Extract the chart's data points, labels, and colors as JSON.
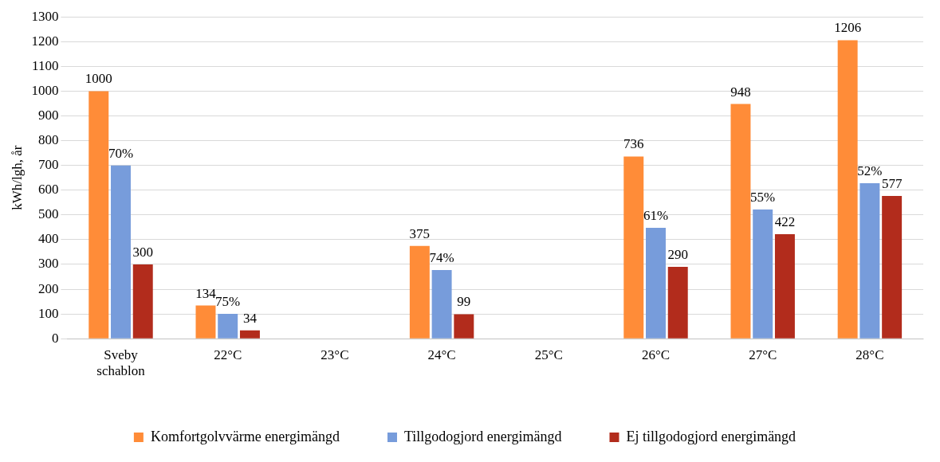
{
  "chart_data": {
    "type": "bar",
    "ylabel": "kWh/lgh, år",
    "categories": [
      "Sveby schablon",
      "22°C",
      "23°C",
      "24°C",
      "25°C",
      "26°C",
      "27°C",
      "28°C"
    ],
    "series": [
      {
        "name": "Komfortgolvvärme energimängd",
        "color": "#ff8c38",
        "values": [
          1000,
          134,
          null,
          375,
          null,
          736,
          948,
          1206
        ],
        "value_labels": [
          "1000",
          "134",
          null,
          "375",
          null,
          "736",
          "948",
          "1206"
        ]
      },
      {
        "name": "Tillgodogjord energimängd",
        "color": "#779cdb",
        "values": [
          700,
          100,
          null,
          277,
          null,
          448,
          522,
          628
        ]
      },
      {
        "name": "Ej tillgodogjord energimängd",
        "color": "#b22c1c",
        "values": [
          300,
          34,
          null,
          99,
          null,
          290,
          422,
          577
        ],
        "value_labels": [
          "300",
          "34",
          null,
          "99",
          null,
          "290",
          "422",
          "577"
        ]
      }
    ],
    "ylim": [
      0,
      1300
    ],
    "yticks": [
      0,
      100,
      200,
      300,
      400,
      500,
      600,
      700,
      800,
      900,
      1000,
      1100,
      1200,
      1300
    ],
    "grid": "y",
    "legend": "bottom",
    "annotations": [
      {
        "text": "70%",
        "x": "Sveby schablon",
        "y": 700
      },
      {
        "text": "75%",
        "x": "22°C",
        "y": 100
      },
      {
        "text": "74%",
        "x": "24°C",
        "y": 277
      },
      {
        "text": "61%",
        "x": "26°C",
        "y": 448
      },
      {
        "text": "55%",
        "x": "27°C",
        "y": 522
      },
      {
        "text": "52%",
        "x": "28°C",
        "y": 628
      }
    ]
  }
}
